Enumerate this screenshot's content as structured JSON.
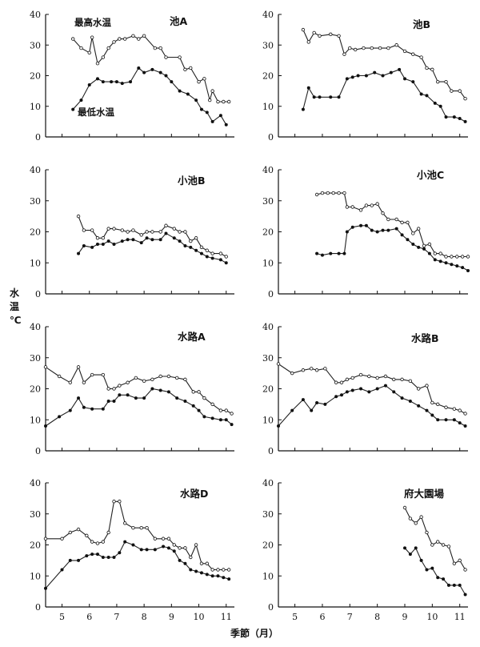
{
  "chart_data": {
    "type": "line",
    "ylabel": "水温℃",
    "ylabel_chars": [
      "水",
      "温",
      "℃"
    ],
    "xlabel": "季節（月）",
    "ylim": [
      0,
      40
    ],
    "yticks": [
      0,
      10,
      20,
      30,
      40
    ],
    "xlim": [
      4.4,
      11.3
    ],
    "xticks": [
      5,
      6,
      7,
      8,
      9,
      10,
      11
    ],
    "series_names": [
      "最高水温",
      "最低水温"
    ],
    "panels": [
      {
        "title": "池A",
        "annotations": [
          "最高水温",
          "最低水温"
        ],
        "max_x": [
          5.4,
          5.7,
          6.0,
          6.1,
          6.3,
          6.5,
          6.7,
          6.9,
          7.1,
          7.3,
          7.6,
          7.8,
          8.0,
          8.4,
          8.6,
          8.8,
          9.3,
          9.5,
          9.7,
          10.0,
          10.2,
          10.4,
          10.5,
          10.7,
          10.9,
          11.1
        ],
        "max_y": [
          32,
          29,
          27.5,
          32.5,
          24,
          26,
          29,
          31,
          32,
          32,
          33,
          32,
          33,
          29,
          29,
          26,
          26,
          22,
          22.5,
          18,
          19,
          12,
          15,
          11.5,
          11.5,
          11.5
        ],
        "min_x": [
          5.4,
          5.7,
          6.0,
          6.3,
          6.5,
          6.8,
          7.0,
          7.2,
          7.5,
          7.8,
          8.0,
          8.3,
          8.6,
          8.8,
          9.0,
          9.3,
          9.6,
          9.9,
          10.1,
          10.3,
          10.5,
          10.8,
          11.0
        ],
        "min_y": [
          9,
          12,
          17,
          19,
          18,
          18,
          18,
          17.5,
          18,
          22.5,
          21,
          22,
          21,
          20,
          18,
          15,
          14,
          12,
          9,
          8,
          5,
          7,
          4
        ]
      },
      {
        "title": "池B",
        "annotations": [],
        "max_x": [
          5.3,
          5.5,
          5.7,
          5.9,
          6.3,
          6.6,
          6.8,
          7.0,
          7.2,
          7.5,
          7.8,
          8.1,
          8.4,
          8.7,
          9.0,
          9.3,
          9.6,
          9.8,
          10.0,
          10.2,
          10.5,
          10.7,
          11.0,
          11.2
        ],
        "max_y": [
          35,
          31,
          34,
          33,
          33.5,
          33,
          27,
          29,
          28.5,
          29,
          29,
          29,
          29,
          30,
          28,
          27,
          26,
          22.5,
          22,
          18,
          18,
          15,
          15,
          12.5
        ],
        "min_x": [
          5.3,
          5.5,
          5.7,
          5.9,
          6.3,
          6.6,
          6.9,
          7.1,
          7.3,
          7.6,
          7.9,
          8.2,
          8.5,
          8.8,
          9.0,
          9.3,
          9.6,
          9.8,
          10.1,
          10.3,
          10.5,
          10.8,
          11.0,
          11.2
        ],
        "min_y": [
          9,
          16,
          13,
          13,
          13,
          13,
          19,
          19.5,
          20,
          20,
          21,
          20,
          21,
          22,
          19,
          18,
          14,
          13.5,
          11,
          10,
          6.5,
          6.5,
          6,
          5
        ]
      },
      {
        "title": "小池B",
        "annotations": [],
        "max_x": [
          5.6,
          5.8,
          6.1,
          6.3,
          6.5,
          6.7,
          6.9,
          7.2,
          7.4,
          7.6,
          7.9,
          8.1,
          8.3,
          8.6,
          8.8,
          9.1,
          9.3,
          9.5,
          9.7,
          9.9,
          10.1,
          10.3,
          10.5,
          10.8,
          11.0
        ],
        "max_y": [
          25,
          20.5,
          20.5,
          18,
          18,
          21,
          21,
          20.5,
          20,
          20.5,
          19,
          20,
          20,
          20,
          22,
          21,
          20,
          20,
          17,
          18,
          15,
          14,
          13,
          13,
          12
        ],
        "min_x": [
          5.6,
          5.8,
          6.1,
          6.3,
          6.5,
          6.7,
          6.9,
          7.2,
          7.4,
          7.6,
          7.9,
          8.1,
          8.3,
          8.6,
          8.8,
          9.1,
          9.3,
          9.5,
          9.7,
          9.9,
          10.1,
          10.3,
          10.5,
          10.8,
          11.0
        ],
        "min_y": [
          13,
          15.5,
          15,
          16,
          16,
          17,
          16,
          17,
          17.5,
          17.5,
          16.5,
          18,
          17.5,
          17.5,
          19.5,
          18,
          17,
          15.5,
          15,
          14,
          13,
          12,
          11.5,
          11,
          10
        ]
      },
      {
        "title": "小池C",
        "annotations": [],
        "max_x": [
          5.8,
          6.0,
          6.2,
          6.4,
          6.6,
          6.8,
          6.9,
          7.1,
          7.4,
          7.6,
          7.8,
          8.0,
          8.2,
          8.4,
          8.7,
          8.9,
          9.1,
          9.3,
          9.5,
          9.7,
          9.9,
          10.1,
          10.3,
          10.5,
          10.7,
          10.9,
          11.1,
          11.3
        ],
        "max_y": [
          32,
          32.5,
          32.5,
          32.5,
          32.5,
          32.5,
          28,
          28,
          27,
          28.5,
          28.5,
          29,
          26,
          24,
          24,
          23,
          23,
          19.5,
          21,
          15.5,
          16,
          13,
          13,
          12,
          12,
          12,
          12,
          12
        ],
        "min_x": [
          5.8,
          6.0,
          6.3,
          6.6,
          6.8,
          6.9,
          7.1,
          7.4,
          7.6,
          7.8,
          8.0,
          8.2,
          8.4,
          8.7,
          8.9,
          9.1,
          9.3,
          9.5,
          9.7,
          9.9,
          10.1,
          10.3,
          10.5,
          10.7,
          10.9,
          11.1,
          11.3
        ],
        "min_y": [
          13,
          12.5,
          13,
          13,
          13,
          20,
          21.5,
          22,
          22,
          20.5,
          20,
          20.5,
          20.5,
          21,
          19,
          17.5,
          16,
          15,
          14.5,
          13,
          11,
          10.5,
          10,
          9.5,
          9,
          8.5,
          7.5
        ]
      },
      {
        "title": "水路A",
        "annotations": [],
        "max_x": [
          4.4,
          4.9,
          5.3,
          5.6,
          5.8,
          6.1,
          6.5,
          6.7,
          6.9,
          7.1,
          7.4,
          7.7,
          8.0,
          8.3,
          8.6,
          8.9,
          9.2,
          9.5,
          9.8,
          10.0,
          10.2,
          10.5,
          10.8,
          11.0,
          11.2
        ],
        "max_y": [
          27,
          24,
          22,
          27,
          22,
          24.5,
          24.5,
          20,
          20,
          21,
          22,
          23.5,
          22.5,
          23,
          24,
          24,
          23.5,
          23,
          19,
          19,
          17,
          15,
          13,
          13,
          12
        ],
        "min_x": [
          4.4,
          4.9,
          5.3,
          5.6,
          5.8,
          6.1,
          6.5,
          6.7,
          6.9,
          7.1,
          7.4,
          7.7,
          8.0,
          8.3,
          8.6,
          8.9,
          9.2,
          9.5,
          9.8,
          10.0,
          10.2,
          10.5,
          10.8,
          11.0,
          11.2
        ],
        "min_y": [
          8,
          11,
          13,
          17,
          14,
          13.5,
          13.5,
          16,
          16,
          18,
          18,
          17,
          17,
          20,
          19.5,
          19,
          17,
          16,
          14.5,
          13,
          11,
          10.5,
          10,
          10,
          8.5
        ]
      },
      {
        "title": "水路B",
        "annotations": [],
        "max_x": [
          4.4,
          4.9,
          5.3,
          5.6,
          5.8,
          6.1,
          6.5,
          6.7,
          6.9,
          7.1,
          7.4,
          7.7,
          8.0,
          8.3,
          8.6,
          8.9,
          9.2,
          9.5,
          9.8,
          10.0,
          10.2,
          10.5,
          10.8,
          11.0,
          11.2
        ],
        "max_y": [
          28,
          25,
          26,
          26.5,
          26,
          26.5,
          22,
          22,
          23,
          23.5,
          24.5,
          24,
          23.5,
          24,
          23,
          23,
          22.5,
          20,
          21,
          15.5,
          15,
          14,
          13.5,
          13,
          12
        ],
        "min_x": [
          4.4,
          4.9,
          5.3,
          5.6,
          5.8,
          6.1,
          6.5,
          6.7,
          6.9,
          7.1,
          7.4,
          7.7,
          8.0,
          8.3,
          8.6,
          8.9,
          9.2,
          9.5,
          9.8,
          10.0,
          10.2,
          10.5,
          10.8,
          11.0,
          11.2
        ],
        "min_y": [
          8,
          13,
          16.5,
          13,
          15.5,
          15,
          17.5,
          18,
          19,
          19.5,
          20,
          19,
          20,
          21,
          19,
          17,
          16,
          14.5,
          13,
          11.5,
          10,
          10,
          10,
          9,
          8
        ]
      },
      {
        "title": "水路D",
        "annotations": [],
        "max_x": [
          4.4,
          5.0,
          5.3,
          5.6,
          5.9,
          6.1,
          6.3,
          6.5,
          6.7,
          6.9,
          7.1,
          7.3,
          7.6,
          7.9,
          8.1,
          8.4,
          8.7,
          8.9,
          9.1,
          9.3,
          9.5,
          9.7,
          9.9,
          10.1,
          10.3,
          10.5,
          10.7,
          10.9,
          11.1
        ],
        "max_y": [
          22,
          22,
          24,
          25,
          23,
          21,
          20.5,
          21,
          24,
          34,
          34,
          27,
          25.5,
          25.5,
          25.5,
          22,
          22,
          22,
          20,
          19,
          19,
          16,
          20,
          14,
          14,
          12,
          12,
          12,
          12
        ],
        "min_x": [
          4.4,
          5.0,
          5.3,
          5.6,
          5.9,
          6.1,
          6.3,
          6.5,
          6.7,
          6.9,
          7.1,
          7.3,
          7.6,
          7.9,
          8.1,
          8.4,
          8.7,
          8.9,
          9.1,
          9.3,
          9.5,
          9.7,
          9.9,
          10.1,
          10.3,
          10.5,
          10.7,
          10.9,
          11.1
        ],
        "min_y": [
          6,
          12,
          15,
          15,
          16.5,
          17,
          17,
          16,
          16,
          16,
          17.5,
          21,
          20,
          18.5,
          18.5,
          18.5,
          19.5,
          19,
          18,
          15,
          14,
          12,
          11.5,
          11,
          10.5,
          10,
          10,
          9.5,
          9
        ]
      },
      {
        "title": "府大園場",
        "annotations": [],
        "max_x": [
          9.0,
          9.2,
          9.4,
          9.6,
          9.8,
          10.0,
          10.2,
          10.4,
          10.6,
          10.8,
          11.0,
          11.2
        ],
        "max_y": [
          32,
          28.5,
          27,
          29,
          24,
          20,
          21,
          20,
          19.5,
          14,
          15,
          12
        ],
        "min_x": [
          9.0,
          9.2,
          9.4,
          9.6,
          9.8,
          10.0,
          10.2,
          10.4,
          10.6,
          10.8,
          11.0,
          11.2
        ],
        "min_y": [
          19,
          17,
          19,
          15,
          12,
          12.5,
          9.5,
          9,
          7,
          7,
          7,
          4
        ]
      }
    ]
  }
}
